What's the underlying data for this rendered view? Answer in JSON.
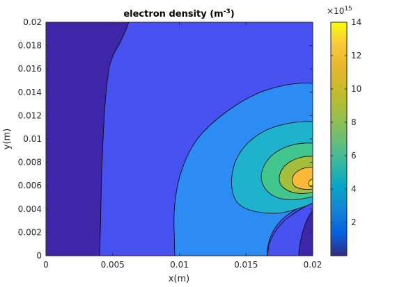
{
  "chart_data": {
    "type": "contour",
    "title_main": "electron density (m",
    "title_exp": "-3",
    "title_end": ")",
    "xlabel": "x(m)",
    "ylabel": "y(m)",
    "xlim": [
      0,
      0.02
    ],
    "ylim": [
      0,
      0.02
    ],
    "x_ticks": [
      "0",
      "0.005",
      "0.01",
      "0.015",
      "0.02"
    ],
    "y_ticks": [
      "0",
      "0.002",
      "0.004",
      "0.006",
      "0.008",
      "0.01",
      "0.012",
      "0.014",
      "0.016",
      "0.018",
      "0.02"
    ],
    "colorbar": {
      "colormap": "parula",
      "min": 0,
      "max": 14,
      "ticks": [
        "2",
        "4",
        "6",
        "8",
        "10",
        "12",
        "14"
      ],
      "scale_label": "×10",
      "scale_exp": "15"
    },
    "contour_levels_e15": [
      2,
      4,
      6,
      8,
      10,
      12,
      14
    ],
    "peak": {
      "x": 0.0199,
      "y": 0.0063
    },
    "level_colors": [
      "#3e26a8",
      "#4751ef",
      "#2d8cf3",
      "#1fb2cc",
      "#41c68e",
      "#a4be3c",
      "#fbb937",
      "#f9e51d"
    ]
  }
}
